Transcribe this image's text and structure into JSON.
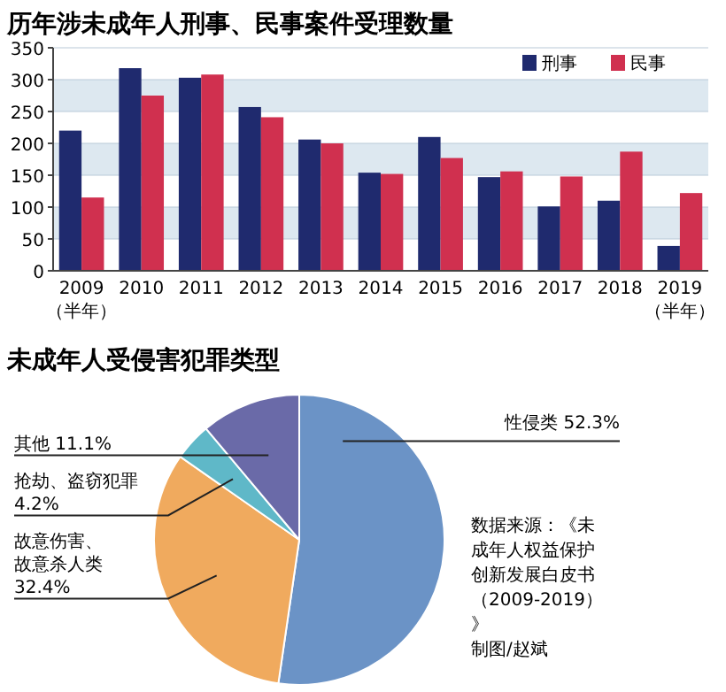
{
  "chart_data": [
    {
      "type": "bar",
      "title": "历年涉未成年人刑事、民事案件受理数量",
      "categories": [
        "2009（半年）",
        "2010",
        "2011",
        "2012",
        "2013",
        "2014",
        "2015",
        "2016",
        "2017",
        "2018",
        "2019（半年）"
      ],
      "series": [
        {
          "name": "刑事",
          "color": "#1f2a6e",
          "values": [
            220,
            318,
            303,
            257,
            206,
            154,
            210,
            147,
            101,
            110,
            39
          ]
        },
        {
          "name": "民事",
          "color": "#d0304f",
          "values": [
            115,
            275,
            308,
            241,
            200,
            152,
            177,
            156,
            148,
            187,
            122
          ]
        }
      ],
      "ylim": [
        0,
        350
      ],
      "yticks": [
        0,
        50,
        100,
        150,
        200,
        250,
        300,
        350
      ],
      "grid": "y",
      "legend": "top right"
    },
    {
      "type": "pie",
      "title": "未成年人受侵害犯罪类型",
      "categories": [
        "性侵类",
        "故意伤害、故意杀人类",
        "抢劫、盗窃犯罪",
        "其他"
      ],
      "values": [
        52.3,
        32.4,
        4.2,
        11.1
      ],
      "value_labels": [
        "52.3%",
        "32.4%",
        "4.2%",
        "11.1%"
      ],
      "colors": [
        "#6b93c6",
        "#f0aa5e",
        "#5fb8c8",
        "#6a6aa8"
      ],
      "annotations": [
        "数据来源：《未成年人权益保护创新发展白皮书（2009-2019）》",
        "制图/赵斌"
      ]
    }
  ]
}
